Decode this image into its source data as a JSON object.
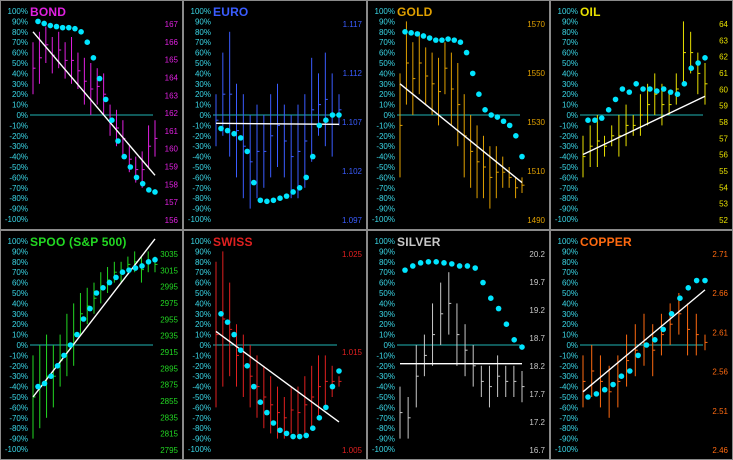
{
  "pct_ticks": [
    "100%",
    "90%",
    "80%",
    "70%",
    "60%",
    "50%",
    "40%",
    "30%",
    "20%",
    "10%",
    "0%",
    "-10%",
    "-20%",
    "-30%",
    "-40%",
    "-50%",
    "-60%",
    "-70%",
    "-80%",
    "-90%",
    "-100%"
  ],
  "colors": {
    "cyan": "#00e5ff",
    "zero_line": "#1fb5b5",
    "trend": "#ffffff",
    "border": "#8a8a8a",
    "axis_text": "#3ad6e6"
  },
  "chart_data": [
    {
      "type": "bar",
      "title": "BOND",
      "color": "#e020e0",
      "right_ticks": [
        "167",
        "166",
        "165",
        "164",
        "163",
        "162",
        "161",
        "160",
        "159",
        "158",
        "157",
        "156"
      ],
      "momentum": [
        0.9,
        0.88,
        0.86,
        0.85,
        0.84,
        0.84,
        0.83,
        0.8,
        0.7,
        0.55,
        0.35,
        0.15,
        -0.05,
        -0.25,
        -0.4,
        -0.5,
        -0.6,
        -0.66,
        -0.72,
        -0.74
      ],
      "bars": [
        [
          0.7,
          0.2
        ],
        [
          0.8,
          0.3
        ],
        [
          0.85,
          0.5
        ],
        [
          0.75,
          0.4
        ],
        [
          0.8,
          0.45
        ],
        [
          0.7,
          0.35
        ],
        [
          0.75,
          0.3
        ],
        [
          0.6,
          0.25
        ],
        [
          0.55,
          0.1
        ],
        [
          0.5,
          0.0
        ],
        [
          0.45,
          0.1
        ],
        [
          0.4,
          0.0
        ],
        [
          0.1,
          -0.2
        ],
        [
          0.05,
          -0.3
        ],
        [
          -0.05,
          -0.4
        ],
        [
          -0.3,
          -0.55
        ],
        [
          -0.4,
          -0.65
        ],
        [
          -0.35,
          -0.7
        ],
        [
          -0.1,
          -0.5
        ],
        [
          -0.05,
          -0.4
        ]
      ],
      "trend": [
        0.8,
        -0.58
      ]
    },
    {
      "type": "bar",
      "title": "EURO",
      "color": "#3a5cff",
      "right_ticks": [
        "1.117",
        "1.112",
        "1.107",
        "1.102",
        "1.097"
      ],
      "momentum": [
        -0.13,
        -0.15,
        -0.18,
        -0.22,
        -0.35,
        -0.65,
        -0.82,
        -0.83,
        -0.82,
        -0.8,
        -0.78,
        -0.74,
        -0.7,
        -0.6,
        -0.4,
        -0.1,
        -0.05,
        0.0,
        0.0
      ],
      "bars": [
        [
          0.2,
          -0.3
        ],
        [
          0.6,
          -0.2
        ],
        [
          0.8,
          -0.4
        ],
        [
          0.3,
          -0.6
        ],
        [
          0.2,
          -0.8
        ],
        [
          0.0,
          -0.9
        ],
        [
          0.1,
          -0.8
        ],
        [
          0.0,
          -0.7
        ],
        [
          0.2,
          -0.6
        ],
        [
          0.3,
          -0.5
        ],
        [
          0.1,
          -0.6
        ],
        [
          0.0,
          -0.8
        ],
        [
          0.1,
          -0.8
        ],
        [
          0.2,
          -0.7
        ],
        [
          0.55,
          -0.45
        ],
        [
          0.4,
          -0.2
        ],
        [
          0.6,
          -0.3
        ],
        [
          0.4,
          -0.4
        ],
        [
          0.2,
          -0.1
        ]
      ],
      "trend": [
        -0.08,
        -0.09
      ]
    },
    {
      "type": "bar",
      "title": "GOLD",
      "color": "#e0a000",
      "right_ticks": [
        "1570",
        "1550",
        "1530",
        "1510",
        "1490"
      ],
      "momentum": [
        0.8,
        0.79,
        0.78,
        0.76,
        0.74,
        0.72,
        0.72,
        0.73,
        0.72,
        0.7,
        0.6,
        0.4,
        0.2,
        0.05,
        0.0,
        -0.02,
        -0.06,
        -0.1,
        -0.2,
        -0.4
      ],
      "bars": [
        [
          0.4,
          -0.6
        ],
        [
          0.9,
          0.1
        ],
        [
          0.7,
          0.0
        ],
        [
          0.8,
          0.2
        ],
        [
          0.65,
          0.1
        ],
        [
          0.6,
          0.0
        ],
        [
          0.55,
          -0.1
        ],
        [
          0.7,
          0.2
        ],
        [
          0.6,
          -0.1
        ],
        [
          0.5,
          -0.3
        ],
        [
          0.2,
          -0.6
        ],
        [
          0.0,
          -0.7
        ],
        [
          -0.1,
          -0.8
        ],
        [
          -0.2,
          -0.8
        ],
        [
          -0.3,
          -0.9
        ],
        [
          -0.3,
          -0.8
        ],
        [
          -0.4,
          -0.7
        ],
        [
          -0.5,
          -0.7
        ],
        [
          -0.6,
          -0.8
        ],
        [
          -0.6,
          -0.75
        ]
      ],
      "trend": [
        0.3,
        -0.65
      ]
    },
    {
      "type": "bar",
      "title": "OIL",
      "color": "#e8e000",
      "right_ticks": [
        "64",
        "63",
        "62",
        "61",
        "60",
        "59",
        "58",
        "57",
        "56",
        "55",
        "54",
        "53",
        "52"
      ],
      "momentum": [
        -0.05,
        -0.05,
        -0.03,
        0.05,
        0.15,
        0.25,
        0.22,
        0.3,
        0.25,
        0.25,
        0.23,
        0.25,
        0.22,
        0.2,
        0.3,
        0.45,
        0.5,
        0.55
      ],
      "bars": [
        [
          -0.2,
          -0.6
        ],
        [
          -0.1,
          -0.5
        ],
        [
          0.0,
          -0.5
        ],
        [
          -0.2,
          -0.4
        ],
        [
          -0.1,
          -0.3
        ],
        [
          0.0,
          -0.4
        ],
        [
          0.1,
          -0.3
        ],
        [
          0.0,
          -0.2
        ],
        [
          0.2,
          -0.2
        ],
        [
          0.3,
          -0.1
        ],
        [
          0.4,
          0.0
        ],
        [
          0.3,
          -0.1
        ],
        [
          0.2,
          0.0
        ],
        [
          0.4,
          0.1
        ],
        [
          0.9,
          0.3
        ],
        [
          0.8,
          0.4
        ],
        [
          0.6,
          0.2
        ],
        [
          0.5,
          0.1
        ]
      ],
      "trend": [
        -0.38,
        0.18
      ]
    },
    {
      "type": "bar",
      "title": "SPOO (S&P 500)",
      "color": "#22d822",
      "right_ticks": [
        "3035",
        "3015",
        "2995",
        "2975",
        "2955",
        "2935",
        "2915",
        "2895",
        "2875",
        "2855",
        "2835",
        "2815",
        "2795"
      ],
      "momentum": [
        -0.4,
        -0.37,
        -0.3,
        -0.2,
        -0.1,
        0.0,
        0.1,
        0.25,
        0.35,
        0.5,
        0.55,
        0.6,
        0.65,
        0.7,
        0.72,
        0.74,
        0.76,
        0.8,
        0.82
      ],
      "bars": [
        [
          -0.1,
          -0.9
        ],
        [
          0.0,
          -0.8
        ],
        [
          0.1,
          -0.7
        ],
        [
          0.0,
          -0.6
        ],
        [
          0.1,
          -0.4
        ],
        [
          0.3,
          -0.3
        ],
        [
          0.4,
          -0.2
        ],
        [
          0.5,
          0.1
        ],
        [
          0.55,
          0.2
        ],
        [
          0.6,
          0.3
        ],
        [
          0.7,
          0.4
        ],
        [
          0.75,
          0.5
        ],
        [
          0.8,
          0.6
        ],
        [
          0.8,
          0.6
        ],
        [
          0.85,
          0.7
        ],
        [
          0.9,
          0.7
        ],
        [
          0.85,
          0.6
        ],
        [
          0.9,
          0.7
        ],
        [
          0.85,
          0.7
        ]
      ],
      "trend": [
        -0.5,
        1.02
      ]
    },
    {
      "type": "bar",
      "title": "SWISS",
      "color": "#e02020",
      "right_ticks": [
        "1.025",
        "1.015",
        "1.005"
      ],
      "momentum": [
        0.3,
        0.22,
        0.1,
        -0.05,
        -0.2,
        -0.4,
        -0.55,
        -0.65,
        -0.75,
        -0.82,
        -0.85,
        -0.88,
        -0.88,
        -0.87,
        -0.8,
        -0.7,
        -0.6,
        -0.4,
        -0.25
      ],
      "bars": [
        [
          0.8,
          -0.6
        ],
        [
          0.9,
          -0.4
        ],
        [
          0.6,
          -0.3
        ],
        [
          0.2,
          -0.4
        ],
        [
          0.1,
          -0.5
        ],
        [
          0.0,
          -0.6
        ],
        [
          -0.1,
          -0.7
        ],
        [
          -0.2,
          -0.8
        ],
        [
          -0.3,
          -0.85
        ],
        [
          -0.4,
          -0.9
        ],
        [
          -0.5,
          -0.9
        ],
        [
          -0.4,
          -0.85
        ],
        [
          -0.4,
          -0.9
        ],
        [
          -0.3,
          -0.85
        ],
        [
          -0.2,
          -0.8
        ],
        [
          -0.1,
          -0.7
        ],
        [
          -0.1,
          -0.6
        ],
        [
          -0.2,
          -0.5
        ],
        [
          -0.3,
          -0.4
        ]
      ],
      "trend": [
        0.13,
        -0.74
      ]
    },
    {
      "type": "bar",
      "title": "SILVER",
      "color": "#c8c8c8",
      "right_ticks": [
        "20.2",
        "19.7",
        "19.2",
        "18.7",
        "18.2",
        "17.7",
        "17.2",
        "16.7"
      ],
      "momentum": [
        0.72,
        0.76,
        0.79,
        0.8,
        0.8,
        0.79,
        0.78,
        0.76,
        0.76,
        0.74,
        0.6,
        0.45,
        0.35,
        0.2,
        0.05,
        -0.02
      ],
      "bars": [
        [
          -0.4,
          -0.9
        ],
        [
          -0.5,
          -0.9
        ],
        [
          0.0,
          -0.6
        ],
        [
          0.1,
          -0.3
        ],
        [
          0.4,
          -0.2
        ],
        [
          0.6,
          0.0
        ],
        [
          0.7,
          0.1
        ],
        [
          0.4,
          -0.2
        ],
        [
          0.2,
          -0.3
        ],
        [
          0.0,
          -0.4
        ],
        [
          -0.2,
          -0.5
        ],
        [
          -0.2,
          -0.6
        ],
        [
          -0.1,
          -0.5
        ],
        [
          -0.2,
          -0.5
        ],
        [
          -0.2,
          -0.5
        ],
        [
          -0.25,
          -0.55
        ]
      ],
      "trend": [
        -0.18,
        -0.18
      ]
    },
    {
      "type": "bar",
      "title": "COPPER",
      "color": "#ff6a10",
      "right_ticks": [
        "2.71",
        "2.66",
        "2.61",
        "2.56",
        "2.51",
        "2.46"
      ],
      "momentum": [
        -0.5,
        -0.47,
        -0.43,
        -0.38,
        -0.3,
        -0.25,
        -0.1,
        0.0,
        0.05,
        0.15,
        0.3,
        0.45,
        0.55,
        0.62,
        0.62
      ],
      "bars": [
        [
          -0.1,
          -0.6
        ],
        [
          0.0,
          -0.5
        ],
        [
          -0.1,
          -0.6
        ],
        [
          -0.2,
          -0.7
        ],
        [
          -0.1,
          -0.6
        ],
        [
          0.1,
          -0.4
        ],
        [
          0.2,
          -0.3
        ],
        [
          0.3,
          -0.2
        ],
        [
          0.2,
          -0.3
        ],
        [
          0.3,
          -0.1
        ],
        [
          0.4,
          0.0
        ],
        [
          0.5,
          0.1
        ],
        [
          0.4,
          -0.1
        ],
        [
          0.3,
          -0.1
        ],
        [
          0.1,
          -0.05
        ]
      ],
      "trend": [
        -0.45,
        0.53
      ]
    }
  ]
}
